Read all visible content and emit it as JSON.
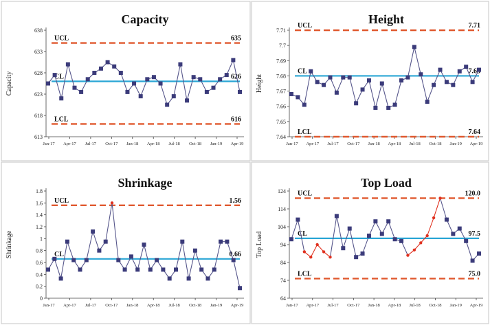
{
  "colors": {
    "point": "#3b3b7a",
    "line": "#55558a",
    "center": "#2aa6d5",
    "limit": "#e0592f",
    "flag": "#e0301e"
  },
  "chart_data": [
    {
      "type": "line",
      "title": "Capacity",
      "ylabel": "Capacity",
      "ylim": [
        613,
        638
      ],
      "yticks": [
        "613",
        "618",
        "623",
        "628",
        "633",
        "638"
      ],
      "x_tick_labels": [
        "Jan-17",
        "Apr-17",
        "Jul-17",
        "Oct-17",
        "Jan-18",
        "Apr-18",
        "Jul-18",
        "Oct-18",
        "Jan-19",
        "Apr-19"
      ],
      "limits": {
        "ucl": 635,
        "cl": 626,
        "lcl": 616
      },
      "limit_labels": {
        "ucl": "UCL",
        "cl": "CL",
        "lcl": "LCL"
      },
      "limit_values": {
        "ucl": "635",
        "cl": "626",
        "lcl": "616"
      },
      "values": [
        625.5,
        627.5,
        622,
        630,
        624.5,
        623.5,
        626.5,
        628,
        629,
        630.5,
        629.5,
        628,
        623.5,
        625.5,
        622.5,
        626.5,
        627,
        625.5,
        620.5,
        622.5,
        630,
        621.5,
        627,
        626.5,
        623.5,
        624.5,
        626.5,
        627.5,
        631,
        623.5
      ],
      "out_of_control": []
    },
    {
      "type": "line",
      "title": "Height",
      "ylabel": "Height",
      "ylim": [
        7.64,
        7.71
      ],
      "yticks": [
        "7.64",
        "7.65",
        "7.66",
        "7.67",
        "7.68",
        "7.69",
        "7.7",
        "7.71"
      ],
      "x_tick_labels": [
        "Jan-17",
        "Apr-17",
        "Jul-17",
        "Oct-17",
        "Jan-18",
        "Apr-18",
        "Jul-18",
        "Oct-18",
        "Jan-19",
        "Apr-19"
      ],
      "limits": {
        "ucl": 7.71,
        "cl": 7.68,
        "lcl": 7.64
      },
      "limit_labels": {
        "ucl": "UCL",
        "cl": "CL",
        "lcl": "LCL"
      },
      "limit_values": {
        "ucl": "7.71",
        "cl": "7.68",
        "lcl": "7.64"
      },
      "values": [
        7.668,
        7.666,
        7.661,
        7.683,
        7.676,
        7.674,
        7.679,
        7.669,
        7.679,
        7.679,
        7.662,
        7.671,
        7.677,
        7.659,
        7.675,
        7.659,
        7.661,
        7.677,
        7.679,
        7.699,
        7.681,
        7.663,
        7.674,
        7.684,
        7.676,
        7.674,
        7.683,
        7.686,
        7.676,
        7.684
      ],
      "out_of_control": []
    },
    {
      "type": "line",
      "title": "Shrinkage",
      "ylabel": "Shrinkage",
      "ylim": [
        0,
        1.8
      ],
      "yticks": [
        "0",
        "0.2",
        "0.4",
        "0.6",
        "0.8",
        "1",
        "1.2",
        "1.4",
        "1.6",
        "1.8"
      ],
      "x_tick_labels": [
        "Jan-17",
        "Apr-17",
        "Jul-17",
        "Oct-17",
        "Jan-18",
        "Apr-18",
        "Jul-18",
        "Oct-18",
        "Jan-19",
        "Apr-19"
      ],
      "limits": {
        "ucl": 1.56,
        "cl": 0.66,
        "lcl": null
      },
      "limit_labels": {
        "ucl": "UCL",
        "cl": "CL",
        "lcl": ""
      },
      "limit_values": {
        "ucl": "1.56",
        "cl": "0.66",
        "lcl": ""
      },
      "values": [
        0.48,
        0.66,
        0.33,
        0.95,
        0.64,
        0.48,
        0.64,
        1.12,
        0.8,
        0.95,
        1.6,
        0.64,
        0.48,
        0.7,
        0.48,
        0.9,
        0.48,
        0.64,
        0.48,
        0.33,
        0.48,
        0.95,
        0.33,
        0.8,
        0.48,
        0.33,
        0.48,
        0.95,
        0.95,
        0.64,
        0.17
      ],
      "out_of_control": [
        10
      ]
    },
    {
      "type": "line",
      "title": "Top Load",
      "ylabel": "Top Load",
      "ylim": [
        64,
        124
      ],
      "yticks": [
        "64",
        "74",
        "84",
        "94",
        "104",
        "114",
        "124"
      ],
      "x_tick_labels": [
        "Jan-17",
        "Apr-17",
        "Jul-17",
        "Oct-17",
        "Jan-18",
        "Apr-18",
        "Jul-18",
        "Oct-18",
        "Jan-19",
        "Apr-19"
      ],
      "limits": {
        "ucl": 120.0,
        "cl": 97.5,
        "lcl": 75.0
      },
      "limit_labels": {
        "ucl": "UCL",
        "cl": "CL",
        "lcl": "LCL"
      },
      "limit_values": {
        "ucl": "120.0",
        "cl": "97.5",
        "lcl": "75.0"
      },
      "values": [
        97,
        108,
        90,
        87,
        94,
        90,
        87,
        110,
        92,
        103,
        87,
        89,
        99,
        107,
        100,
        107,
        97,
        96,
        88,
        91,
        95,
        99,
        109,
        120,
        108,
        100,
        103,
        96,
        85,
        89
      ],
      "out_of_control": [
        2,
        3,
        4,
        5,
        6,
        18,
        19,
        20,
        21,
        22,
        23
      ]
    }
  ]
}
